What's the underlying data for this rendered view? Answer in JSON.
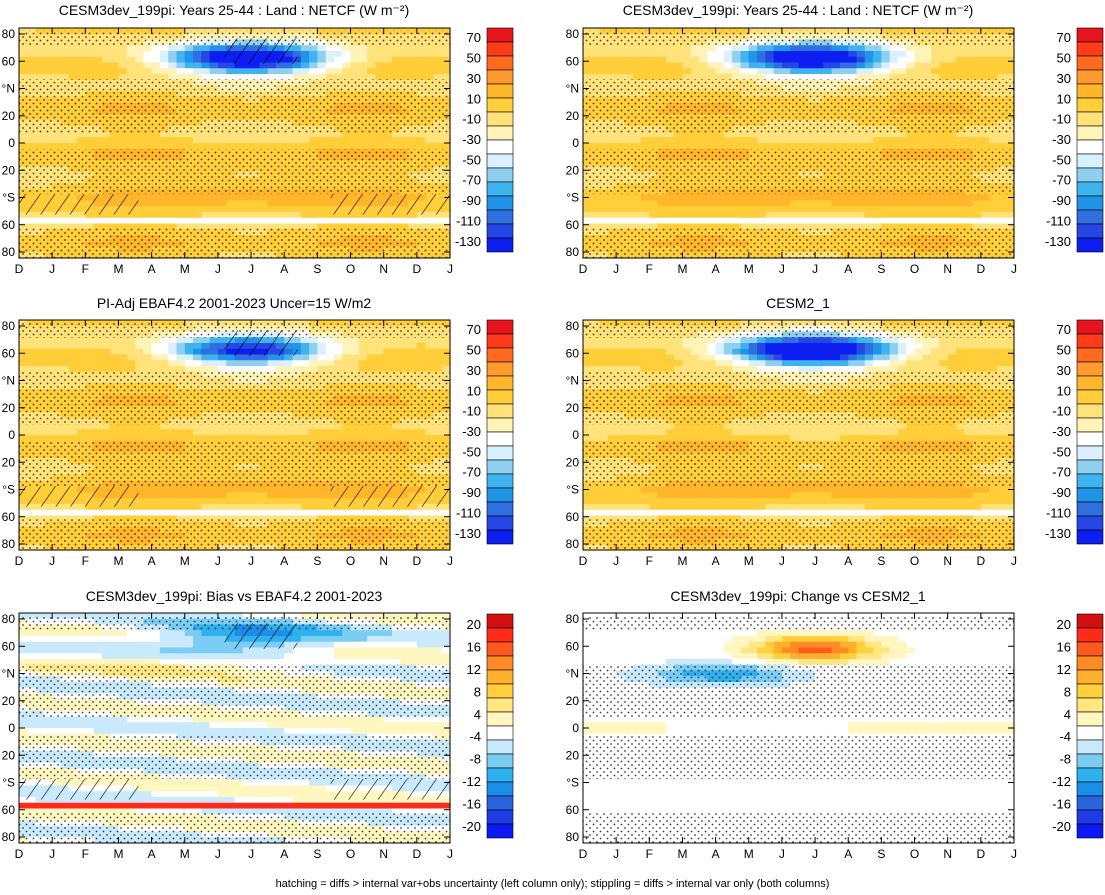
{
  "figure": {
    "footnote": "hatching = diffs > internal var+obs uncertainty (left column only); stippling = diffs > internal var only (both columns)"
  },
  "chart_data": [
    {
      "type": "heatmap",
      "title": "CESM3dev_199pi: Years 25-44 : Land : NETCF (W m⁻²)",
      "x_ticks": [
        "D",
        "J",
        "F",
        "M",
        "A",
        "M",
        "J",
        "J",
        "A",
        "S",
        "O",
        "N",
        "D",
        "J"
      ],
      "y_ticks": [
        "80",
        "60",
        "°N",
        "20",
        "0",
        "20",
        "°S",
        "60",
        "80"
      ],
      "colorbar_labels": [
        "70",
        "50",
        "30",
        "10",
        "-10",
        "-30",
        "-50",
        "-70",
        "-90",
        "-110",
        "-130"
      ],
      "features": {
        "neg_blob_strength": 1.0,
        "south_band_strength": 1.0,
        "equator_white": false,
        "hatch_north": true,
        "hatch_south": true,
        "stipple": true
      }
    },
    {
      "type": "heatmap",
      "title": "CESM3dev_199pi: Years 25-44 : Land : NETCF (W m⁻²)",
      "x_ticks": [
        "D",
        "J",
        "F",
        "M",
        "A",
        "M",
        "J",
        "J",
        "A",
        "S",
        "O",
        "N",
        "D",
        "J"
      ],
      "y_ticks": [
        "80",
        "60",
        "°N",
        "20",
        "0",
        "20",
        "°S",
        "60",
        "80"
      ],
      "colorbar_labels": [
        "70",
        "50",
        "30",
        "10",
        "-10",
        "-30",
        "-50",
        "-70",
        "-90",
        "-110",
        "-130"
      ],
      "features": {
        "neg_blob_strength": 1.0,
        "south_band_strength": 1.2,
        "equator_white": false,
        "hatch_north": false,
        "hatch_south": false,
        "stipple": true
      }
    },
    {
      "type": "heatmap",
      "title": "PI-Adj EBAF4.2 2001-2023 Uncer=15 W/m2",
      "x_ticks": [
        "D",
        "J",
        "F",
        "M",
        "A",
        "M",
        "J",
        "J",
        "A",
        "S",
        "O",
        "N",
        "D",
        "J"
      ],
      "y_ticks": [
        "80",
        "60",
        "°N",
        "20",
        "0",
        "20",
        "°S",
        "60",
        "80"
      ],
      "colorbar_labels": [
        "70",
        "50",
        "30",
        "10",
        "-10",
        "-30",
        "-50",
        "-70",
        "-90",
        "-110",
        "-130"
      ],
      "features": {
        "neg_blob_strength": 0.8,
        "south_band_strength": 0.7,
        "equator_white": false,
        "hatch_north": true,
        "hatch_south": true,
        "stipple": true
      }
    },
    {
      "type": "heatmap",
      "title": "CESM2_1",
      "x_ticks": [
        "D",
        "J",
        "F",
        "M",
        "A",
        "M",
        "J",
        "J",
        "A",
        "S",
        "O",
        "N",
        "D",
        "J"
      ],
      "y_ticks": [
        "80",
        "60",
        "°N",
        "20",
        "0",
        "20",
        "°S",
        "60",
        "80"
      ],
      "colorbar_labels": [
        "70",
        "50",
        "30",
        "10",
        "-10",
        "-30",
        "-50",
        "-70",
        "-90",
        "-110",
        "-130"
      ],
      "features": {
        "neg_blob_strength": 1.1,
        "south_band_strength": 1.1,
        "equator_white": true,
        "hatch_north": false,
        "hatch_south": false,
        "stipple": true
      }
    },
    {
      "type": "heatmap",
      "title": "CESM3dev_199pi: Bias vs EBAF4.2 2001-2023",
      "x_ticks": [
        "D",
        "J",
        "F",
        "M",
        "A",
        "M",
        "J",
        "J",
        "A",
        "S",
        "O",
        "N",
        "D",
        "J"
      ],
      "y_ticks": [
        "80",
        "60",
        "°N",
        "20",
        "0",
        "20",
        "°S",
        "60",
        "80"
      ],
      "colorbar_labels": [
        "20",
        "16",
        "12",
        "8",
        "4",
        "-4",
        "-8",
        "-12",
        "-16",
        "-20"
      ],
      "features": {
        "variant": "bias",
        "hatch_north": true,
        "hatch_south": true,
        "stipple": true
      }
    },
    {
      "type": "heatmap",
      "title": "CESM3dev_199pi: Change vs CESM2_1",
      "x_ticks": [
        "D",
        "J",
        "F",
        "M",
        "A",
        "M",
        "J",
        "J",
        "A",
        "S",
        "O",
        "N",
        "D",
        "J"
      ],
      "y_ticks": [
        "80",
        "60",
        "°N",
        "20",
        "0",
        "20",
        "°S",
        "60",
        "80"
      ],
      "colorbar_labels": [
        "20",
        "16",
        "12",
        "8",
        "4",
        "-4",
        "-8",
        "-12",
        "-16",
        "-20"
      ],
      "features": {
        "variant": "change",
        "hatch_north": false,
        "hatch_south": false,
        "stipple": true
      }
    }
  ]
}
